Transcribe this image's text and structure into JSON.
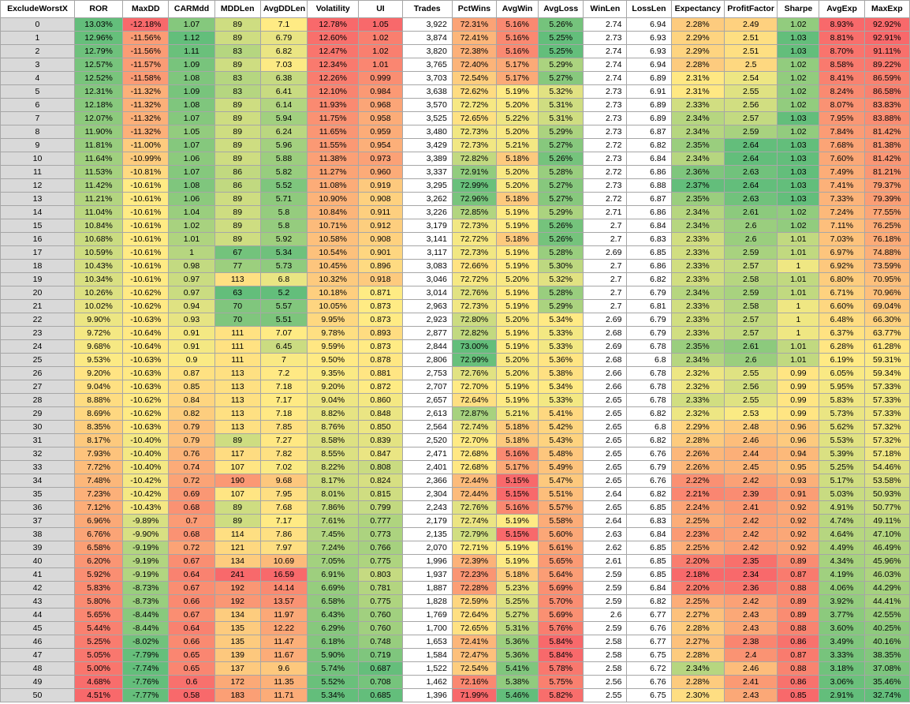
{
  "table": {
    "columns": [
      "ExcludeWorstX",
      "ROR",
      "MaxDD",
      "CARMdd",
      "MDDLen",
      "AvgDDLen",
      "Volatility",
      "UI",
      "Trades",
      "PctWins",
      "AvgWin",
      "AvgLoss",
      "WinLen",
      "LossLen",
      "Expectancy",
      "ProfitFactor",
      "Sharpe",
      "AvgExp",
      "MaxExp"
    ],
    "rows": [
      [
        "0",
        "13.03%",
        "-12.18%",
        "1.07",
        "89",
        "7.1",
        "12.78%",
        "1.05",
        "3,922",
        "72.31%",
        "5.16%",
        "5.26%",
        "2.74",
        "6.94",
        "2.28%",
        "2.49",
        "1.02",
        "8.93%",
        "92.92%"
      ],
      [
        "1",
        "12.96%",
        "-11.56%",
        "1.12",
        "89",
        "6.79",
        "12.60%",
        "1.02",
        "3,874",
        "72.41%",
        "5.16%",
        "5.25%",
        "2.73",
        "6.93",
        "2.29%",
        "2.51",
        "1.03",
        "8.81%",
        "92.91%"
      ],
      [
        "2",
        "12.79%",
        "-11.56%",
        "1.11",
        "83",
        "6.82",
        "12.47%",
        "1.02",
        "3,820",
        "72.38%",
        "5.16%",
        "5.25%",
        "2.74",
        "6.93",
        "2.29%",
        "2.51",
        "1.03",
        "8.70%",
        "91.11%"
      ],
      [
        "3",
        "12.57%",
        "-11.57%",
        "1.09",
        "89",
        "7.03",
        "12.34%",
        "1.01",
        "3,765",
        "72.40%",
        "5.17%",
        "5.29%",
        "2.74",
        "6.94",
        "2.28%",
        "2.5",
        "1.02",
        "8.58%",
        "89.22%"
      ],
      [
        "4",
        "12.52%",
        "-11.58%",
        "1.08",
        "83",
        "6.38",
        "12.26%",
        "0.999",
        "3,703",
        "72.54%",
        "5.17%",
        "5.27%",
        "2.74",
        "6.89",
        "2.31%",
        "2.54",
        "1.02",
        "8.41%",
        "86.59%"
      ],
      [
        "5",
        "12.31%",
        "-11.32%",
        "1.09",
        "83",
        "6.41",
        "12.10%",
        "0.984",
        "3,638",
        "72.62%",
        "5.19%",
        "5.32%",
        "2.73",
        "6.91",
        "2.31%",
        "2.55",
        "1.02",
        "8.24%",
        "86.58%"
      ],
      [
        "6",
        "12.18%",
        "-11.32%",
        "1.08",
        "89",
        "6.14",
        "11.93%",
        "0.968",
        "3,570",
        "72.72%",
        "5.20%",
        "5.31%",
        "2.73",
        "6.89",
        "2.33%",
        "2.56",
        "1.02",
        "8.07%",
        "83.83%"
      ],
      [
        "7",
        "12.07%",
        "-11.32%",
        "1.07",
        "89",
        "5.94",
        "11.75%",
        "0.958",
        "3,525",
        "72.65%",
        "5.22%",
        "5.31%",
        "2.73",
        "6.89",
        "2.34%",
        "2.57",
        "1.03",
        "7.95%",
        "83.88%"
      ],
      [
        "8",
        "11.90%",
        "-11.32%",
        "1.05",
        "89",
        "6.24",
        "11.65%",
        "0.959",
        "3,480",
        "72.73%",
        "5.20%",
        "5.29%",
        "2.73",
        "6.87",
        "2.34%",
        "2.59",
        "1.02",
        "7.84%",
        "81.42%"
      ],
      [
        "9",
        "11.81%",
        "-11.00%",
        "1.07",
        "89",
        "5.96",
        "11.55%",
        "0.954",
        "3,429",
        "72.73%",
        "5.21%",
        "5.27%",
        "2.72",
        "6.82",
        "2.35%",
        "2.64",
        "1.03",
        "7.68%",
        "81.38%"
      ],
      [
        "10",
        "11.64%",
        "-10.99%",
        "1.06",
        "89",
        "5.88",
        "11.38%",
        "0.973",
        "3,389",
        "72.82%",
        "5.18%",
        "5.26%",
        "2.73",
        "6.84",
        "2.34%",
        "2.64",
        "1.03",
        "7.60%",
        "81.42%"
      ],
      [
        "11",
        "11.53%",
        "-10.81%",
        "1.07",
        "86",
        "5.82",
        "11.27%",
        "0.960",
        "3,337",
        "72.91%",
        "5.20%",
        "5.28%",
        "2.72",
        "6.86",
        "2.36%",
        "2.63",
        "1.03",
        "7.49%",
        "81.21%"
      ],
      [
        "12",
        "11.42%",
        "-10.61%",
        "1.08",
        "86",
        "5.52",
        "11.08%",
        "0.919",
        "3,295",
        "72.99%",
        "5.20%",
        "5.27%",
        "2.73",
        "6.88",
        "2.37%",
        "2.64",
        "1.03",
        "7.41%",
        "79.37%"
      ],
      [
        "13",
        "11.21%",
        "-10.61%",
        "1.06",
        "89",
        "5.71",
        "10.90%",
        "0.908",
        "3,262",
        "72.96%",
        "5.18%",
        "5.27%",
        "2.72",
        "6.87",
        "2.35%",
        "2.63",
        "1.03",
        "7.33%",
        "79.39%"
      ],
      [
        "14",
        "11.04%",
        "-10.61%",
        "1.04",
        "89",
        "5.8",
        "10.84%",
        "0.911",
        "3,226",
        "72.85%",
        "5.19%",
        "5.29%",
        "2.71",
        "6.86",
        "2.34%",
        "2.61",
        "1.02",
        "7.24%",
        "77.55%"
      ],
      [
        "15",
        "10.84%",
        "-10.61%",
        "1.02",
        "89",
        "5.8",
        "10.71%",
        "0.912",
        "3,179",
        "72.73%",
        "5.19%",
        "5.26%",
        "2.7",
        "6.84",
        "2.34%",
        "2.6",
        "1.02",
        "7.11%",
        "76.25%"
      ],
      [
        "16",
        "10.68%",
        "-10.61%",
        "1.01",
        "89",
        "5.92",
        "10.58%",
        "0.908",
        "3,141",
        "72.72%",
        "5.18%",
        "5.26%",
        "2.7",
        "6.83",
        "2.33%",
        "2.6",
        "1.01",
        "7.03%",
        "76.18%"
      ],
      [
        "17",
        "10.59%",
        "-10.61%",
        "1",
        "67",
        "5.34",
        "10.54%",
        "0.901",
        "3,117",
        "72.73%",
        "5.19%",
        "5.28%",
        "2.69",
        "6.85",
        "2.33%",
        "2.59",
        "1.01",
        "6.97%",
        "74.88%"
      ],
      [
        "18",
        "10.43%",
        "-10.61%",
        "0.98",
        "77",
        "5.73",
        "10.45%",
        "0.896",
        "3,083",
        "72.66%",
        "5.19%",
        "5.30%",
        "2.7",
        "6.86",
        "2.33%",
        "2.57",
        "1",
        "6.92%",
        "73.59%"
      ],
      [
        "19",
        "10.34%",
        "-10.61%",
        "0.97",
        "113",
        "6.8",
        "10.32%",
        "0.918",
        "3,046",
        "72.72%",
        "5.20%",
        "5.32%",
        "2.7",
        "6.82",
        "2.33%",
        "2.58",
        "1.01",
        "6.80%",
        "70.95%"
      ],
      [
        "20",
        "10.26%",
        "-10.62%",
        "0.97",
        "63",
        "5.2",
        "10.18%",
        "0.871",
        "3,014",
        "72.76%",
        "5.19%",
        "5.28%",
        "2.7",
        "6.79",
        "2.34%",
        "2.59",
        "1.01",
        "6.71%",
        "70.96%"
      ],
      [
        "21",
        "10.02%",
        "-10.62%",
        "0.94",
        "70",
        "5.57",
        "10.05%",
        "0.873",
        "2,963",
        "72.73%",
        "5.19%",
        "5.29%",
        "2.7",
        "6.81",
        "2.33%",
        "2.58",
        "1",
        "6.60%",
        "69.04%"
      ],
      [
        "22",
        "9.90%",
        "-10.63%",
        "0.93",
        "70",
        "5.51",
        "9.95%",
        "0.873",
        "2,923",
        "72.80%",
        "5.20%",
        "5.34%",
        "2.69",
        "6.79",
        "2.33%",
        "2.57",
        "1",
        "6.48%",
        "66.30%"
      ],
      [
        "23",
        "9.72%",
        "-10.64%",
        "0.91",
        "111",
        "7.07",
        "9.78%",
        "0.893",
        "2,877",
        "72.82%",
        "5.19%",
        "5.33%",
        "2.68",
        "6.79",
        "2.33%",
        "2.57",
        "1",
        "6.37%",
        "63.77%"
      ],
      [
        "24",
        "9.68%",
        "-10.64%",
        "0.91",
        "111",
        "6.45",
        "9.59%",
        "0.873",
        "2,844",
        "73.00%",
        "5.19%",
        "5.33%",
        "2.69",
        "6.78",
        "2.35%",
        "2.61",
        "1.01",
        "6.28%",
        "61.28%"
      ],
      [
        "25",
        "9.53%",
        "-10.63%",
        "0.9",
        "111",
        "7",
        "9.50%",
        "0.878",
        "2,806",
        "72.99%",
        "5.20%",
        "5.36%",
        "2.68",
        "6.8",
        "2.34%",
        "2.6",
        "1.01",
        "6.19%",
        "59.31%"
      ],
      [
        "26",
        "9.20%",
        "-10.63%",
        "0.87",
        "113",
        "7.2",
        "9.35%",
        "0.881",
        "2,753",
        "72.76%",
        "5.20%",
        "5.38%",
        "2.66",
        "6.78",
        "2.32%",
        "2.55",
        "0.99",
        "6.05%",
        "59.34%"
      ],
      [
        "27",
        "9.04%",
        "-10.63%",
        "0.85",
        "113",
        "7.18",
        "9.20%",
        "0.872",
        "2,707",
        "72.70%",
        "5.19%",
        "5.34%",
        "2.66",
        "6.78",
        "2.32%",
        "2.56",
        "0.99",
        "5.95%",
        "57.33%"
      ],
      [
        "28",
        "8.88%",
        "-10.62%",
        "0.84",
        "113",
        "7.17",
        "9.04%",
        "0.860",
        "2,657",
        "72.64%",
        "5.19%",
        "5.33%",
        "2.65",
        "6.78",
        "2.33%",
        "2.55",
        "0.99",
        "5.83%",
        "57.33%"
      ],
      [
        "29",
        "8.69%",
        "-10.62%",
        "0.82",
        "113",
        "7.18",
        "8.82%",
        "0.848",
        "2,613",
        "72.87%",
        "5.21%",
        "5.41%",
        "2.65",
        "6.82",
        "2.32%",
        "2.53",
        "0.99",
        "5.73%",
        "57.33%"
      ],
      [
        "30",
        "8.35%",
        "-10.63%",
        "0.79",
        "113",
        "7.85",
        "8.76%",
        "0.850",
        "2,564",
        "72.74%",
        "5.18%",
        "5.42%",
        "2.65",
        "6.8",
        "2.29%",
        "2.48",
        "0.96",
        "5.62%",
        "57.32%"
      ],
      [
        "31",
        "8.17%",
        "-10.40%",
        "0.79",
        "89",
        "7.27",
        "8.58%",
        "0.839",
        "2,520",
        "72.70%",
        "5.18%",
        "5.43%",
        "2.65",
        "6.82",
        "2.28%",
        "2.46",
        "0.96",
        "5.53%",
        "57.32%"
      ],
      [
        "32",
        "7.93%",
        "-10.40%",
        "0.76",
        "117",
        "7.82",
        "8.55%",
        "0.847",
        "2,471",
        "72.68%",
        "5.16%",
        "5.48%",
        "2.65",
        "6.76",
        "2.26%",
        "2.44",
        "0.94",
        "5.39%",
        "57.18%"
      ],
      [
        "33",
        "7.72%",
        "-10.40%",
        "0.74",
        "107",
        "7.02",
        "8.22%",
        "0.808",
        "2,401",
        "72.68%",
        "5.17%",
        "5.49%",
        "2.65",
        "6.79",
        "2.26%",
        "2.45",
        "0.95",
        "5.25%",
        "54.46%"
      ],
      [
        "34",
        "7.48%",
        "-10.42%",
        "0.72",
        "190",
        "9.68",
        "8.17%",
        "0.824",
        "2,366",
        "72.44%",
        "5.15%",
        "5.47%",
        "2.65",
        "6.76",
        "2.22%",
        "2.42",
        "0.93",
        "5.17%",
        "53.58%"
      ],
      [
        "35",
        "7.23%",
        "-10.42%",
        "0.69",
        "107",
        "7.95",
        "8.01%",
        "0.815",
        "2,304",
        "72.44%",
        "5.15%",
        "5.51%",
        "2.64",
        "6.82",
        "2.21%",
        "2.39",
        "0.91",
        "5.03%",
        "50.93%"
      ],
      [
        "36",
        "7.12%",
        "-10.43%",
        "0.68",
        "89",
        "7.68",
        "7.86%",
        "0.799",
        "2,243",
        "72.76%",
        "5.16%",
        "5.57%",
        "2.65",
        "6.85",
        "2.24%",
        "2.41",
        "0.92",
        "4.91%",
        "50.77%"
      ],
      [
        "37",
        "6.96%",
        "-9.89%",
        "0.7",
        "89",
        "7.17",
        "7.61%",
        "0.777",
        "2,179",
        "72.74%",
        "5.19%",
        "5.58%",
        "2.64",
        "6.83",
        "2.25%",
        "2.42",
        "0.92",
        "4.74%",
        "49.11%"
      ],
      [
        "38",
        "6.76%",
        "-9.90%",
        "0.68",
        "114",
        "7.86",
        "7.45%",
        "0.773",
        "2,135",
        "72.79%",
        "5.15%",
        "5.60%",
        "2.63",
        "6.84",
        "2.23%",
        "2.42",
        "0.92",
        "4.64%",
        "47.10%"
      ],
      [
        "39",
        "6.58%",
        "-9.19%",
        "0.72",
        "121",
        "7.97",
        "7.24%",
        "0.766",
        "2,070",
        "72.71%",
        "5.19%",
        "5.61%",
        "2.62",
        "6.85",
        "2.25%",
        "2.42",
        "0.92",
        "4.49%",
        "46.49%"
      ],
      [
        "40",
        "6.20%",
        "-9.19%",
        "0.67",
        "134",
        "10.69",
        "7.05%",
        "0.775",
        "1,996",
        "72.39%",
        "5.19%",
        "5.65%",
        "2.61",
        "6.85",
        "2.20%",
        "2.35",
        "0.89",
        "4.34%",
        "45.96%"
      ],
      [
        "41",
        "5.92%",
        "-9.19%",
        "0.64",
        "241",
        "16.59",
        "6.91%",
        "0.803",
        "1,937",
        "72.23%",
        "5.18%",
        "5.64%",
        "2.59",
        "6.85",
        "2.18%",
        "2.34",
        "0.87",
        "4.19%",
        "46.03%"
      ],
      [
        "42",
        "5.83%",
        "-8.73%",
        "0.67",
        "192",
        "14.14",
        "6.69%",
        "0.781",
        "1,887",
        "72.28%",
        "5.23%",
        "5.69%",
        "2.59",
        "6.84",
        "2.20%",
        "2.36",
        "0.88",
        "4.06%",
        "44.29%"
      ],
      [
        "43",
        "5.80%",
        "-8.73%",
        "0.66",
        "192",
        "13.57",
        "6.58%",
        "0.775",
        "1,828",
        "72.59%",
        "5.25%",
        "5.70%",
        "2.59",
        "6.82",
        "2.25%",
        "2.42",
        "0.89",
        "3.92%",
        "44.41%"
      ],
      [
        "44",
        "5.65%",
        "-8.44%",
        "0.67",
        "134",
        "11.97",
        "6.43%",
        "0.760",
        "1,769",
        "72.64%",
        "5.27%",
        "5.69%",
        "2.6",
        "6.77",
        "2.27%",
        "2.43",
        "0.89",
        "3.77%",
        "42.55%"
      ],
      [
        "45",
        "5.44%",
        "-8.44%",
        "0.64",
        "135",
        "12.22",
        "6.29%",
        "0.760",
        "1,700",
        "72.65%",
        "5.31%",
        "5.76%",
        "2.59",
        "6.76",
        "2.28%",
        "2.43",
        "0.88",
        "3.60%",
        "40.25%"
      ],
      [
        "46",
        "5.25%",
        "-8.02%",
        "0.66",
        "135",
        "11.47",
        "6.18%",
        "0.748",
        "1,653",
        "72.41%",
        "5.36%",
        "5.84%",
        "2.58",
        "6.77",
        "2.27%",
        "2.38",
        "0.86",
        "3.49%",
        "40.16%"
      ],
      [
        "47",
        "5.05%",
        "-7.79%",
        "0.65",
        "139",
        "11.67",
        "5.90%",
        "0.719",
        "1,584",
        "72.47%",
        "5.36%",
        "5.84%",
        "2.58",
        "6.75",
        "2.28%",
        "2.4",
        "0.87",
        "3.33%",
        "38.35%"
      ],
      [
        "48",
        "5.00%",
        "-7.74%",
        "0.65",
        "137",
        "9.6",
        "5.74%",
        "0.687",
        "1,522",
        "72.54%",
        "5.41%",
        "5.78%",
        "2.58",
        "6.72",
        "2.34%",
        "2.46",
        "0.88",
        "3.18%",
        "37.08%"
      ],
      [
        "49",
        "4.68%",
        "-7.76%",
        "0.6",
        "172",
        "11.35",
        "5.52%",
        "0.708",
        "1,462",
        "72.16%",
        "5.38%",
        "5.75%",
        "2.56",
        "6.76",
        "2.28%",
        "2.41",
        "0.86",
        "3.06%",
        "35.46%"
      ],
      [
        "50",
        "4.51%",
        "-7.77%",
        "0.58",
        "183",
        "11.71",
        "5.34%",
        "0.685",
        "1,396",
        "71.99%",
        "5.46%",
        "5.82%",
        "2.55",
        "6.75",
        "2.30%",
        "2.43",
        "0.85",
        "2.91%",
        "32.74%"
      ]
    ],
    "scale": {
      "good": "#63be7b",
      "mid": "#ffeb84",
      "bad": "#f8696b",
      "index_fill": "#d9d9d9",
      "grid": "#a6a6a6",
      "higher_is_better": [
        "ROR",
        "MaxDD",
        "CARMdd",
        "PctWins",
        "AvgWin",
        "Expectancy",
        "ProfitFactor",
        "Sharpe"
      ],
      "lower_is_better": [
        "MDDLen",
        "AvgDDLen",
        "Volatility",
        "UI",
        "AvgLoss",
        "AvgExp",
        "MaxExp"
      ],
      "unshaded": [
        "ExcludeWorstX",
        "Trades",
        "WinLen",
        "LossLen"
      ]
    }
  }
}
